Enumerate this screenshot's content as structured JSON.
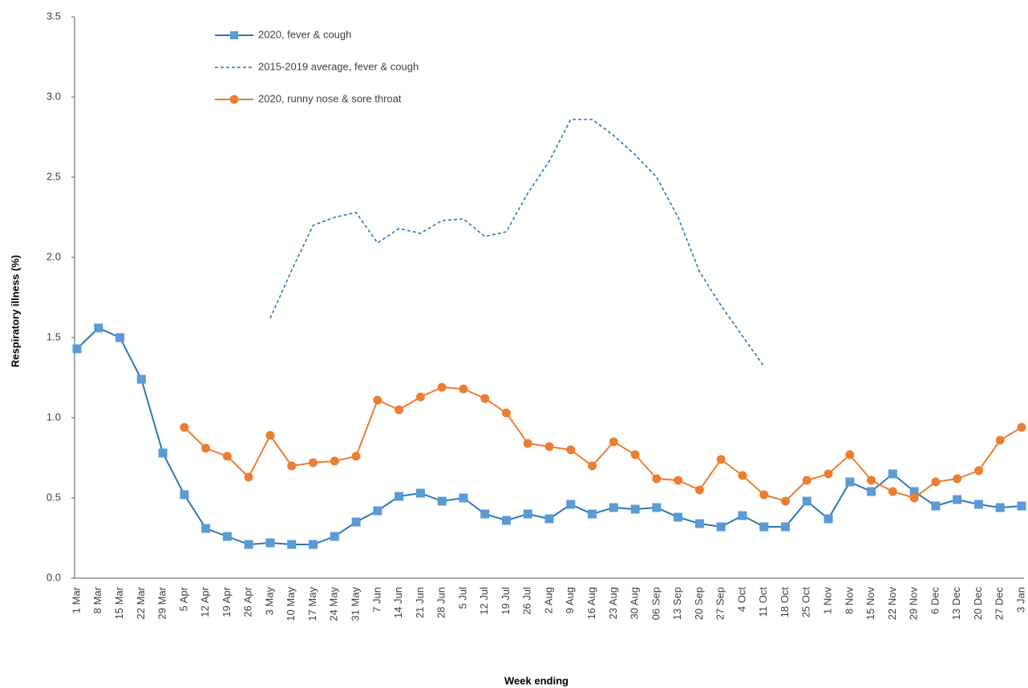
{
  "chart_data": {
    "type": "line",
    "y_label": "Respiratory illness (%)",
    "x_label": "Week ending",
    "categories": [
      "1 Mar",
      "8 Mar",
      "15 Mar",
      "22 Mar",
      "29 Mar",
      "5 Apr",
      "12 Apr",
      "19 Apr",
      "26 Apr",
      "3 May",
      "10 May",
      "17 May",
      "24 May",
      "31 May",
      "7 Jun",
      "14 Jun",
      "21 Jun",
      "28 Jun",
      "5 Jul",
      "12 Jul",
      "19 Jul",
      "26 Jul",
      "2 Aug",
      "9 Aug",
      "16 Aug",
      "23 Aug",
      "30 Aug",
      "06 Sep",
      "13 Sep",
      "20 Sep",
      "27 Sep",
      "4 Oct",
      "11 Oct",
      "18 Oct",
      "25 Oct",
      "1 Nov",
      "8 Nov",
      "15 Nov",
      "22 Nov",
      "29 Nov",
      "6 Dec",
      "13 Dec",
      "20 Dec",
      "27 Dec",
      "3 Jan"
    ],
    "series": [
      {
        "name": "2020, fever & cough",
        "color": "#2e75b6",
        "marker": "square",
        "dashed": false,
        "values": [
          1.43,
          1.56,
          1.5,
          1.24,
          0.78,
          0.52,
          0.31,
          0.26,
          0.21,
          0.22,
          0.21,
          0.21,
          0.26,
          0.35,
          0.42,
          0.51,
          0.53,
          0.48,
          0.5,
          0.4,
          0.36,
          0.4,
          0.37,
          0.46,
          0.4,
          0.44,
          0.43,
          0.44,
          0.38,
          0.34,
          0.32,
          0.39,
          0.32,
          0.32,
          0.48,
          0.37,
          0.6,
          0.54,
          0.65,
          0.54,
          0.45,
          0.49,
          0.46,
          0.44,
          0.45
        ]
      },
      {
        "name": "2015-2019 average, fever & cough",
        "color": "#2e75b6",
        "marker": null,
        "dashed": true,
        "values": [
          null,
          null,
          null,
          null,
          null,
          null,
          null,
          null,
          null,
          1.62,
          1.92,
          2.2,
          2.25,
          2.28,
          2.09,
          2.18,
          2.15,
          2.23,
          2.24,
          2.13,
          2.16,
          2.4,
          2.6,
          2.86,
          2.86,
          2.76,
          2.64,
          2.5,
          2.25,
          1.91,
          1.7,
          1.51,
          1.32,
          null,
          null,
          null,
          null,
          null,
          null,
          null,
          null,
          null,
          null,
          null,
          null
        ]
      },
      {
        "name": "2020, runny nose & sore throat",
        "color": "#ed7d31",
        "marker": "circle",
        "dashed": false,
        "values": [
          null,
          null,
          null,
          null,
          null,
          0.94,
          0.81,
          0.76,
          0.63,
          0.89,
          0.7,
          0.72,
          0.73,
          0.76,
          1.11,
          1.05,
          1.13,
          1.19,
          1.18,
          1.12,
          1.03,
          0.84,
          0.82,
          0.8,
          0.7,
          0.85,
          0.77,
          0.62,
          0.61,
          0.55,
          0.74,
          0.64,
          0.52,
          0.48,
          0.61,
          0.65,
          0.77,
          0.61,
          0.54,
          0.5,
          0.6,
          0.62,
          0.67,
          0.86,
          0.94
        ]
      }
    ],
    "ylim": [
      0,
      3.5
    ],
    "yticks": [
      {
        "value": 0,
        "label": "0.0"
      },
      0.5,
      {
        "value": 1,
        "label": "1.0"
      },
      1.5,
      {
        "value": 2,
        "label": "2.0"
      },
      2.5,
      {
        "value": 3,
        "label": "3.0"
      },
      3.5
    ],
    "grid": false,
    "legend": "top-left"
  }
}
